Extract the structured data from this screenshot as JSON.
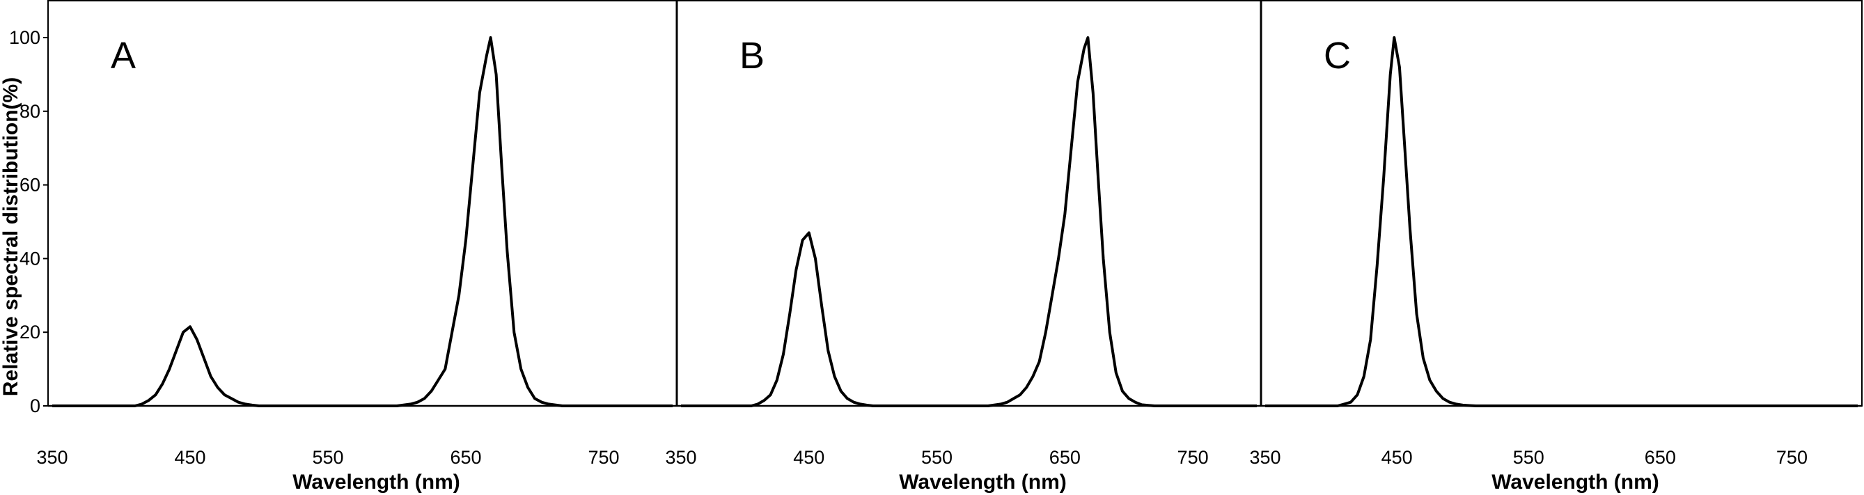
{
  "y_axis_label": "Relative spectral distribution(%)",
  "chart_data": [
    {
      "type": "line",
      "panel_label": "A",
      "xlabel": "Wavelength (nm)",
      "ylabel": "Relative spectral distribution(%)",
      "x_tick_labels": [
        "350",
        "450",
        "550",
        "650",
        "750"
      ],
      "y_tick_labels": [
        "0",
        "20",
        "40",
        "60",
        "80",
        "100"
      ],
      "xlim": [
        350,
        800
      ],
      "ylim": [
        0,
        110
      ],
      "grid": false,
      "series": [
        {
          "x": [
            350,
            410,
            415,
            420,
            425,
            430,
            435,
            440,
            445,
            450,
            455,
            460,
            465,
            470,
            475,
            480,
            485,
            490,
            495,
            500,
            600,
            610,
            615,
            620,
            625,
            630,
            635,
            640,
            645,
            650,
            655,
            660,
            665,
            668,
            672,
            676,
            680,
            685,
            690,
            695,
            700,
            705,
            710,
            720,
            800
          ],
          "y": [
            0,
            0,
            0.5,
            1.5,
            3,
            6,
            10,
            15,
            20,
            21.5,
            18,
            13,
            8,
            5,
            3,
            2,
            1,
            0.5,
            0.2,
            0,
            0,
            0.5,
            1,
            2,
            4,
            7,
            10,
            20,
            30,
            45,
            65,
            85,
            95,
            100,
            90,
            65,
            42,
            20,
            10,
            5,
            2,
            1,
            0.5,
            0,
            0
          ]
        }
      ]
    },
    {
      "type": "line",
      "panel_label": "B",
      "xlabel": "Wavelength (nm)",
      "x_tick_labels": [
        "350",
        "450",
        "550",
        "650",
        "750"
      ],
      "xlim": [
        350,
        800
      ],
      "ylim": [
        0,
        110
      ],
      "grid": false,
      "series": [
        {
          "x": [
            350,
            405,
            410,
            415,
            420,
            425,
            430,
            435,
            440,
            445,
            450,
            455,
            460,
            465,
            470,
            475,
            480,
            485,
            490,
            495,
            500,
            590,
            600,
            605,
            610,
            615,
            620,
            625,
            630,
            635,
            640,
            645,
            650,
            655,
            660,
            665,
            668,
            672,
            676,
            680,
            685,
            690,
            695,
            700,
            705,
            710,
            720,
            800
          ],
          "y": [
            0,
            0,
            0.5,
            1.5,
            3,
            7,
            14,
            25,
            37,
            45,
            47,
            40,
            27,
            15,
            8,
            4,
            2,
            1,
            0.5,
            0.2,
            0,
            0,
            0.5,
            1,
            2,
            3,
            5,
            8,
            12,
            20,
            30,
            40,
            52,
            70,
            88,
            97,
            100,
            85,
            62,
            40,
            20,
            9,
            4,
            2,
            1,
            0.3,
            0,
            0
          ]
        }
      ]
    },
    {
      "type": "line",
      "panel_label": "C",
      "xlabel": "Wavelength (nm)",
      "x_tick_labels": [
        "350",
        "450",
        "550",
        "650",
        "750"
      ],
      "xlim": [
        350,
        800
      ],
      "ylim": [
        0,
        110
      ],
      "grid": false,
      "series": [
        {
          "x": [
            350,
            405,
            410,
            415,
            420,
            425,
            430,
            435,
            440,
            445,
            448,
            452,
            456,
            460,
            465,
            470,
            475,
            480,
            485,
            490,
            495,
            500,
            505,
            510,
            800
          ],
          "y": [
            0,
            0,
            0.5,
            1,
            3,
            8,
            18,
            38,
            62,
            90,
            100,
            92,
            70,
            48,
            25,
            13,
            7,
            4,
            2,
            1,
            0.5,
            0.2,
            0.1,
            0,
            0
          ]
        }
      ]
    }
  ]
}
